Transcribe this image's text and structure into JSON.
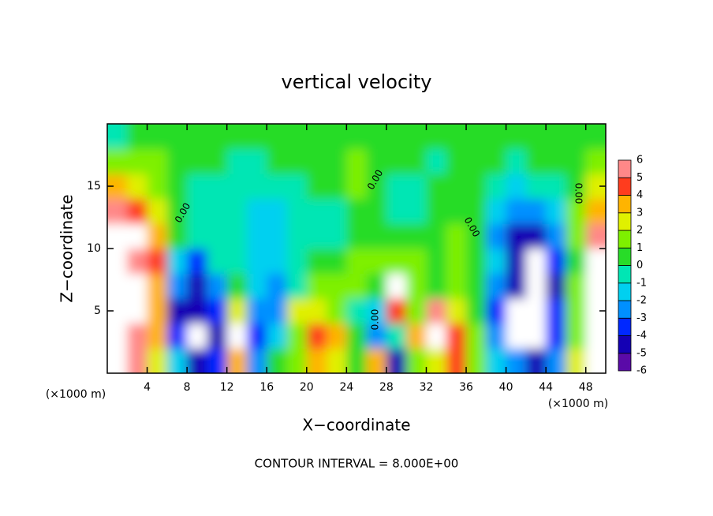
{
  "chart_data": {
    "type": "heatmap",
    "title": "vertical velocity",
    "xlabel": "X−coordinate",
    "ylabel": "Z−coordinate",
    "x_units": "(×1000 m)",
    "y_units": "(×1000 m)",
    "footer": "CONTOUR INTERVAL = 8.000E+00",
    "contour_label": "0.00",
    "xlim": [
      0,
      50
    ],
    "ylim": [
      0,
      20
    ],
    "xticks": [
      4,
      8,
      12,
      16,
      20,
      24,
      28,
      32,
      36,
      40,
      44,
      48
    ],
    "yticks": [
      5,
      10,
      15
    ],
    "x": [
      1,
      3,
      5,
      7,
      9,
      11,
      13,
      15,
      17,
      19,
      21,
      23,
      25,
      27,
      29,
      31,
      33,
      35,
      37,
      39,
      41,
      43,
      45,
      47,
      49
    ],
    "y": [
      1,
      3,
      5,
      7,
      9,
      11,
      13,
      15,
      17,
      19
    ],
    "values": [
      [
        6,
        5,
        2,
        -2,
        -5,
        -4,
        3,
        -3,
        0,
        1,
        3,
        2,
        0,
        3,
        -5,
        1,
        2,
        4,
        1,
        -2,
        -3,
        -5,
        -3,
        2,
        6
      ],
      [
        7,
        5,
        3,
        -4,
        7,
        -5,
        7,
        -4,
        -2,
        1,
        4,
        3,
        0,
        -3,
        -1,
        3,
        7,
        4,
        1,
        -3,
        7,
        7,
        -4,
        1,
        7
      ],
      [
        7,
        6,
        3,
        -5,
        -5,
        -4,
        2,
        -3,
        -3,
        2,
        2,
        1,
        -1,
        -2,
        4,
        1,
        5,
        2,
        0,
        -4,
        7,
        7,
        -4,
        1,
        7
      ],
      [
        7,
        6,
        3,
        -3,
        -5,
        -3,
        0,
        -2,
        -3,
        -1,
        1,
        1,
        1,
        0,
        7,
        1,
        0,
        1,
        0,
        -3,
        -5,
        7,
        -5,
        1,
        7
      ],
      [
        6,
        5,
        4,
        -2,
        -4,
        -1,
        -1,
        -2,
        -2,
        -1,
        0,
        0,
        1,
        1,
        1,
        1,
        0,
        1,
        0,
        -2,
        -5,
        7,
        -4,
        0,
        6
      ],
      [
        7,
        6,
        3,
        0,
        -1,
        -1,
        -1,
        -2,
        -2,
        -1,
        -1,
        -1,
        0,
        0,
        0,
        0,
        0,
        1,
        0,
        -3,
        -5,
        -5,
        -3,
        1,
        5
      ],
      [
        5,
        4,
        2,
        0,
        -1,
        -1,
        -1,
        -2,
        -2,
        -1,
        -1,
        -1,
        0,
        0,
        -1,
        -1,
        0,
        0,
        0,
        -2,
        -3,
        -3,
        -2,
        1,
        3
      ],
      [
        3,
        2,
        1,
        0,
        -1,
        -1,
        -1,
        -1,
        -1,
        -1,
        0,
        0,
        1,
        0,
        -1,
        -1,
        0,
        0,
        0,
        -1,
        -2,
        -1,
        -1,
        0,
        2
      ],
      [
        1,
        1,
        1,
        0,
        0,
        0,
        -1,
        -1,
        0,
        0,
        0,
        0,
        1,
        0,
        0,
        0,
        -1,
        0,
        0,
        0,
        -1,
        0,
        0,
        0,
        1
      ],
      [
        -1,
        0,
        0,
        0,
        0,
        0,
        0,
        0,
        0,
        0,
        0,
        0,
        0,
        0,
        0,
        0,
        0,
        0,
        0,
        0,
        0,
        0,
        0,
        0,
        0
      ]
    ],
    "levels": [
      -6,
      -5,
      -4,
      -3,
      -2,
      -1,
      0,
      1,
      2,
      3,
      4,
      5,
      6
    ],
    "colors": [
      "#5a0aa8",
      "#1400b4",
      "#0028ff",
      "#0090ff",
      "#00d0f0",
      "#00e6b4",
      "#28dc28",
      "#7ef000",
      "#e0f000",
      "#ffb400",
      "#ff3c1e",
      "#ff8888"
    ],
    "over_color": "#ffffff"
  }
}
